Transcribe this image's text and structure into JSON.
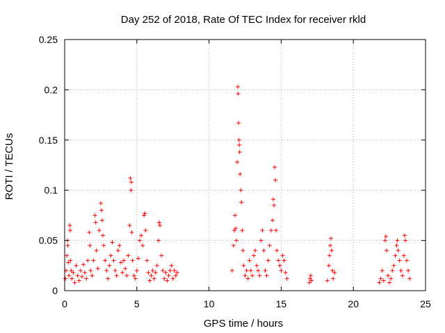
{
  "chart_data": {
    "type": "scatter",
    "title": "Day 252 of 2018, Rate Of TEC Index for receiver rkld",
    "xlabel": "GPS time / hours",
    "ylabel": "ROTI / TECUs",
    "xlim": [
      0,
      25
    ],
    "ylim": [
      0,
      0.25
    ],
    "xticks": [
      0,
      5,
      10,
      15,
      20,
      25
    ],
    "yticks": [
      0,
      0.05,
      0.1,
      0.15,
      0.2,
      0.25
    ],
    "xtick_labels": [
      "0",
      "5",
      "10",
      "15",
      "20",
      "25"
    ],
    "ytick_labels": [
      "0",
      "0.05",
      "0.1",
      "0.15",
      "0.2",
      "0.25"
    ],
    "grid": true,
    "marker": "+",
    "color": "#ff0000",
    "series": [
      {
        "name": "ROTI",
        "points": [
          [
            0.05,
            0.012
          ],
          [
            0.1,
            0.02
          ],
          [
            0.15,
            0.035
          ],
          [
            0.2,
            0.05
          ],
          [
            0.22,
            0.045
          ],
          [
            0.25,
            0.028
          ],
          [
            0.3,
            0.015
          ],
          [
            0.35,
            0.065
          ],
          [
            0.38,
            0.06
          ],
          [
            0.4,
            0.03
          ],
          [
            0.45,
            0.02
          ],
          [
            0.5,
            0.012
          ],
          [
            0.6,
            0.018
          ],
          [
            0.7,
            0.008
          ],
          [
            0.8,
            0.025
          ],
          [
            0.9,
            0.015
          ],
          [
            1.0,
            0.01
          ],
          [
            1.1,
            0.02
          ],
          [
            1.2,
            0.014
          ],
          [
            1.3,
            0.026
          ],
          [
            1.4,
            0.018
          ],
          [
            1.5,
            0.012
          ],
          [
            1.6,
            0.03
          ],
          [
            1.7,
            0.058
          ],
          [
            1.75,
            0.045
          ],
          [
            1.8,
            0.02
          ],
          [
            1.9,
            0.015
          ],
          [
            2.0,
            0.03
          ],
          [
            2.1,
            0.075
          ],
          [
            2.15,
            0.068
          ],
          [
            2.2,
            0.04
          ],
          [
            2.3,
            0.022
          ],
          [
            2.4,
            0.06
          ],
          [
            2.5,
            0.087
          ],
          [
            2.55,
            0.08
          ],
          [
            2.6,
            0.07
          ],
          [
            2.65,
            0.055
          ],
          [
            2.7,
            0.045
          ],
          [
            2.8,
            0.03
          ],
          [
            2.9,
            0.02
          ],
          [
            3.0,
            0.012
          ],
          [
            3.1,
            0.025
          ],
          [
            3.2,
            0.035
          ],
          [
            3.3,
            0.048
          ],
          [
            3.4,
            0.03
          ],
          [
            3.5,
            0.02
          ],
          [
            3.6,
            0.015
          ],
          [
            3.7,
            0.04
          ],
          [
            3.8,
            0.045
          ],
          [
            3.9,
            0.028
          ],
          [
            4.0,
            0.018
          ],
          [
            4.1,
            0.03
          ],
          [
            4.2,
            0.022
          ],
          [
            4.3,
            0.015
          ],
          [
            4.4,
            0.035
          ],
          [
            4.5,
            0.065
          ],
          [
            4.55,
            0.112
          ],
          [
            4.6,
            0.1
          ],
          [
            4.62,
            0.108
          ],
          [
            4.65,
            0.058
          ],
          [
            4.7,
            0.03
          ],
          [
            4.8,
            0.015
          ],
          [
            4.9,
            0.012
          ],
          [
            5.0,
            0.02
          ],
          [
            5.1,
            0.032
          ],
          [
            5.2,
            0.05
          ],
          [
            5.3,
            0.055
          ],
          [
            5.4,
            0.045
          ],
          [
            5.5,
            0.075
          ],
          [
            5.55,
            0.077
          ],
          [
            5.6,
            0.06
          ],
          [
            5.7,
            0.03
          ],
          [
            5.8,
            0.018
          ],
          [
            5.9,
            0.01
          ],
          [
            6.0,
            0.015
          ],
          [
            6.1,
            0.02
          ],
          [
            6.2,
            0.012
          ],
          [
            6.3,
            0.018
          ],
          [
            6.4,
            0.025
          ],
          [
            6.5,
            0.05
          ],
          [
            6.55,
            0.068
          ],
          [
            6.6,
            0.065
          ],
          [
            6.7,
            0.035
          ],
          [
            6.8,
            0.02
          ],
          [
            6.9,
            0.012
          ],
          [
            7.0,
            0.018
          ],
          [
            7.1,
            0.01
          ],
          [
            7.2,
            0.015
          ],
          [
            7.3,
            0.02
          ],
          [
            7.4,
            0.025
          ],
          [
            7.5,
            0.012
          ],
          [
            7.6,
            0.02
          ],
          [
            7.7,
            0.015
          ],
          [
            7.8,
            0.018
          ],
          [
            11.6,
            0.02
          ],
          [
            11.7,
            0.045
          ],
          [
            11.75,
            0.06
          ],
          [
            11.8,
            0.075
          ],
          [
            11.85,
            0.062
          ],
          [
            11.9,
            0.05
          ],
          [
            11.95,
            0.128
          ],
          [
            12.0,
            0.203
          ],
          [
            12.02,
            0.196
          ],
          [
            12.05,
            0.167
          ],
          [
            12.08,
            0.15
          ],
          [
            12.1,
            0.145
          ],
          [
            12.12,
            0.138
          ],
          [
            12.15,
            0.116
          ],
          [
            12.2,
            0.1
          ],
          [
            12.25,
            0.088
          ],
          [
            12.3,
            0.06
          ],
          [
            12.35,
            0.04
          ],
          [
            12.4,
            0.025
          ],
          [
            12.5,
            0.015
          ],
          [
            12.6,
            0.02
          ],
          [
            12.7,
            0.012
          ],
          [
            12.8,
            0.03
          ],
          [
            12.9,
            0.02
          ],
          [
            13.0,
            0.015
          ],
          [
            13.1,
            0.035
          ],
          [
            13.2,
            0.04
          ],
          [
            13.3,
            0.025
          ],
          [
            13.4,
            0.02
          ],
          [
            13.5,
            0.015
          ],
          [
            13.6,
            0.05
          ],
          [
            13.7,
            0.06
          ],
          [
            13.8,
            0.04
          ],
          [
            13.9,
            0.02
          ],
          [
            14.0,
            0.015
          ],
          [
            14.1,
            0.03
          ],
          [
            14.2,
            0.045
          ],
          [
            14.3,
            0.06
          ],
          [
            14.4,
            0.07
          ],
          [
            14.45,
            0.091
          ],
          [
            14.5,
            0.085
          ],
          [
            14.55,
            0.123
          ],
          [
            14.6,
            0.11
          ],
          [
            14.65,
            0.06
          ],
          [
            14.7,
            0.04
          ],
          [
            14.8,
            0.03
          ],
          [
            14.9,
            0.025
          ],
          [
            15.0,
            0.02
          ],
          [
            15.1,
            0.035
          ],
          [
            15.2,
            0.03
          ],
          [
            15.3,
            0.018
          ],
          [
            15.4,
            0.012
          ],
          [
            16.95,
            0.008
          ],
          [
            17.0,
            0.012
          ],
          [
            17.05,
            0.015
          ],
          [
            17.1,
            0.01
          ],
          [
            18.2,
            0.01
          ],
          [
            18.3,
            0.025
          ],
          [
            18.35,
            0.035
          ],
          [
            18.4,
            0.045
          ],
          [
            18.45,
            0.052
          ],
          [
            18.5,
            0.04
          ],
          [
            18.55,
            0.02
          ],
          [
            18.6,
            0.012
          ],
          [
            18.7,
            0.018
          ],
          [
            21.8,
            0.008
          ],
          [
            21.9,
            0.012
          ],
          [
            22.0,
            0.02
          ],
          [
            22.1,
            0.01
          ],
          [
            22.2,
            0.05
          ],
          [
            22.25,
            0.054
          ],
          [
            22.3,
            0.04
          ],
          [
            22.4,
            0.015
          ],
          [
            22.5,
            0.008
          ],
          [
            22.6,
            0.012
          ],
          [
            22.7,
            0.02
          ],
          [
            22.8,
            0.025
          ],
          [
            22.9,
            0.035
          ],
          [
            23.0,
            0.045
          ],
          [
            23.05,
            0.05
          ],
          [
            23.1,
            0.04
          ],
          [
            23.2,
            0.03
          ],
          [
            23.3,
            0.02
          ],
          [
            23.4,
            0.015
          ],
          [
            23.5,
            0.035
          ],
          [
            23.55,
            0.055
          ],
          [
            23.6,
            0.05
          ],
          [
            23.7,
            0.03
          ],
          [
            23.8,
            0.02
          ],
          [
            23.9,
            0.012
          ]
        ]
      }
    ]
  }
}
